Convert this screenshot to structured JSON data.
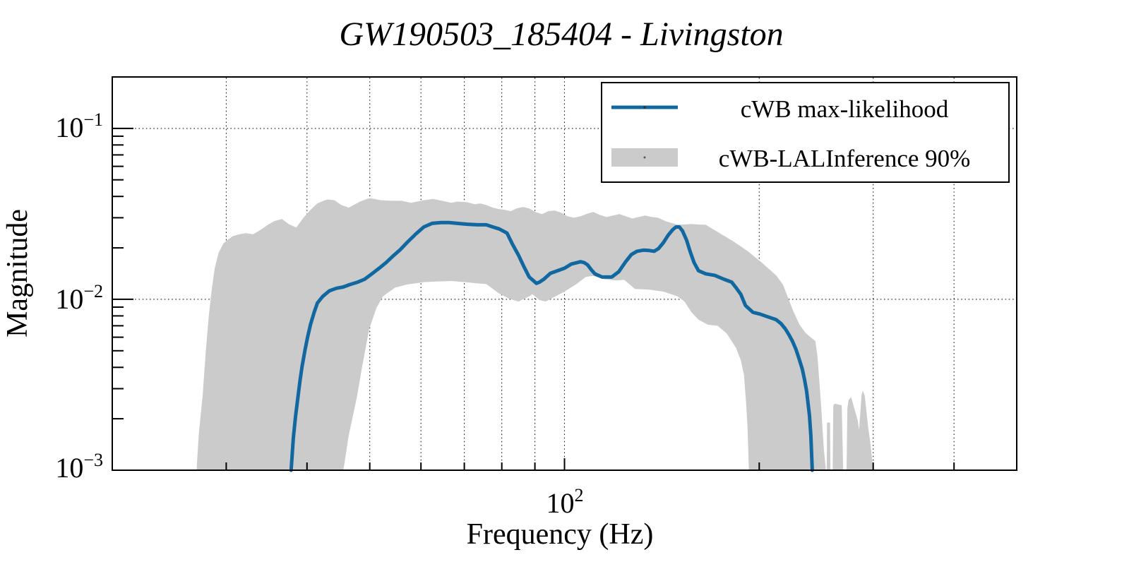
{
  "figure": {
    "background": "#ffffff"
  },
  "chart_data": {
    "type": "line",
    "title": "GW190503_185404 - Livingston",
    "xlabel": "Frequency (Hz)",
    "ylabel": "Magnitude",
    "x_scale": "log",
    "y_scale": "log",
    "xlim": [
      20,
      500
    ],
    "ylim": [
      0.001,
      0.2
    ],
    "grid": "dotted",
    "x_gridlines": [
      30,
      40,
      50,
      60,
      70,
      80,
      90,
      100,
      200,
      300,
      400
    ],
    "y_gridlines": [
      0.1,
      0.01
    ],
    "x_ticks_minor": [
      30,
      40,
      50,
      60,
      70,
      80,
      90,
      200,
      300,
      400
    ],
    "x_ticks_major": [
      100
    ],
    "y_ticks_major": [
      0.1,
      0.01
    ],
    "y_ticks_minor": [
      0.09,
      0.08,
      0.07,
      0.06,
      0.05,
      0.04,
      0.03,
      0.02,
      0.009,
      0.008,
      0.007,
      0.006,
      0.005,
      0.004,
      0.003,
      0.002
    ],
    "x_tick_labels": [
      {
        "value": 100,
        "base": "10",
        "exp": "2"
      }
    ],
    "y_tick_labels": [
      {
        "value": 0.1,
        "base": "10",
        "exp": "−1"
      },
      {
        "value": 0.01,
        "base": "10",
        "exp": "−2"
      },
      {
        "value": 0.001,
        "base": "10",
        "exp": "−3"
      }
    ],
    "legend": {
      "position": "upper right",
      "entries": [
        {
          "label": "cWB max-likelihood",
          "type": "line",
          "color": "#1168a0"
        },
        {
          "label": "cWB-LALInference 90%",
          "type": "band",
          "color": "#cbcbcb"
        }
      ]
    },
    "series": [
      {
        "name": "cWB max-likelihood",
        "color": "#1168a0",
        "points": [
          [
            37.8,
            0.001
          ],
          [
            38.1,
            0.00155
          ],
          [
            38.4,
            0.00207
          ],
          [
            38.7,
            0.00262
          ],
          [
            39.0,
            0.00332
          ],
          [
            39.3,
            0.00404
          ],
          [
            39.7,
            0.00503
          ],
          [
            40.1,
            0.00605
          ],
          [
            40.5,
            0.00713
          ],
          [
            41.0,
            0.00833
          ],
          [
            41.5,
            0.00951
          ],
          [
            42.3,
            0.0104
          ],
          [
            43.3,
            0.0112
          ],
          [
            44.4,
            0.0116
          ],
          [
            45.5,
            0.0118
          ],
          [
            46.6,
            0.0122
          ],
          [
            47.9,
            0.0126
          ],
          [
            49.1,
            0.0131
          ],
          [
            50.4,
            0.0141
          ],
          [
            51.7,
            0.0152
          ],
          [
            53.0,
            0.0164
          ],
          [
            54.4,
            0.018
          ],
          [
            55.8,
            0.0196
          ],
          [
            57.1,
            0.0215
          ],
          [
            58.9,
            0.0241
          ],
          [
            60.6,
            0.0265
          ],
          [
            62.4,
            0.0278
          ],
          [
            64.4,
            0.0281
          ],
          [
            66.3,
            0.0281
          ],
          [
            68.3,
            0.0278
          ],
          [
            70.8,
            0.0275
          ],
          [
            73.4,
            0.0273
          ],
          [
            75.7,
            0.0273
          ],
          [
            77.5,
            0.0265
          ],
          [
            79.3,
            0.0258
          ],
          [
            81.5,
            0.0244
          ],
          [
            83.0,
            0.0212
          ],
          [
            84.9,
            0.0181
          ],
          [
            86.5,
            0.0156
          ],
          [
            88.2,
            0.0135
          ],
          [
            90.5,
            0.0124
          ],
          [
            91.5,
            0.0126
          ],
          [
            92.9,
            0.0131
          ],
          [
            95.1,
            0.0142
          ],
          [
            100.0,
            0.0152
          ],
          [
            102.5,
            0.0161
          ],
          [
            104.6,
            0.0164
          ],
          [
            105.9,
            0.0166
          ],
          [
            107.2,
            0.0164
          ],
          [
            108.6,
            0.0159
          ],
          [
            110.0,
            0.0149
          ],
          [
            111.4,
            0.0141
          ],
          [
            114.3,
            0.0135
          ],
          [
            118.3,
            0.0135
          ],
          [
            121.3,
            0.0145
          ],
          [
            124.3,
            0.0166
          ],
          [
            126.9,
            0.0183
          ],
          [
            129.4,
            0.0191
          ],
          [
            132.4,
            0.0194
          ],
          [
            135.2,
            0.0193
          ],
          [
            137.6,
            0.0191
          ],
          [
            139.7,
            0.0198
          ],
          [
            142.1,
            0.0214
          ],
          [
            144.6,
            0.0237
          ],
          [
            146.9,
            0.0255
          ],
          [
            148.7,
            0.0265
          ],
          [
            150.5,
            0.0265
          ],
          [
            152.2,
            0.0251
          ],
          [
            154.4,
            0.0222
          ],
          [
            156.5,
            0.0189
          ],
          [
            158.6,
            0.0164
          ],
          [
            161.1,
            0.0147
          ],
          [
            165.3,
            0.0141
          ],
          [
            170.8,
            0.0138
          ],
          [
            176.4,
            0.0131
          ],
          [
            181.3,
            0.0126
          ],
          [
            184.1,
            0.0117
          ],
          [
            187.3,
            0.0107
          ],
          [
            190.4,
            0.0092
          ],
          [
            195.5,
            0.0084
          ],
          [
            200.5,
            0.0082
          ],
          [
            206.1,
            0.0079
          ],
          [
            212.4,
            0.0076
          ],
          [
            216.2,
            0.0072
          ],
          [
            219.5,
            0.0067
          ],
          [
            222.3,
            0.0062
          ],
          [
            225.0,
            0.0057
          ],
          [
            227.9,
            0.0051
          ],
          [
            230.8,
            0.0044
          ],
          [
            233.1,
            0.0039
          ],
          [
            234.9,
            0.0034
          ],
          [
            236.7,
            0.0029
          ],
          [
            239.1,
            0.0021
          ],
          [
            240.3,
            0.0016
          ],
          [
            241.5,
            0.001
          ]
        ]
      }
    ],
    "band": {
      "name": "cWB-LALInference 90%",
      "color": "#cbcbcb",
      "upper": [
        [
          27.0,
          0.001
        ],
        [
          27.2,
          0.0016
        ],
        [
          27.6,
          0.0028
        ],
        [
          27.9,
          0.005
        ],
        [
          28.2,
          0.008
        ],
        [
          28.5,
          0.0114
        ],
        [
          28.8,
          0.0152
        ],
        [
          29.2,
          0.0187
        ],
        [
          29.7,
          0.0212
        ],
        [
          30.1,
          0.0222
        ],
        [
          30.7,
          0.0234
        ],
        [
          31.4,
          0.024
        ],
        [
          32.2,
          0.0244
        ],
        [
          33.0,
          0.024
        ],
        [
          33.8,
          0.0253
        ],
        [
          34.8,
          0.0273
        ],
        [
          35.6,
          0.0287
        ],
        [
          36.6,
          0.0295
        ],
        [
          37.5,
          0.0275
        ],
        [
          38.5,
          0.0263
        ],
        [
          39.5,
          0.03
        ],
        [
          40.5,
          0.0334
        ],
        [
          41.5,
          0.0364
        ],
        [
          42.6,
          0.038
        ],
        [
          43.1,
          0.0384
        ],
        [
          44.1,
          0.038
        ],
        [
          45.2,
          0.0356
        ],
        [
          46.4,
          0.0344
        ],
        [
          48.3,
          0.0373
        ],
        [
          49.5,
          0.0387
        ],
        [
          50.1,
          0.0391
        ],
        [
          52.0,
          0.038
        ],
        [
          54.0,
          0.0377
        ],
        [
          56.0,
          0.0377
        ],
        [
          57.9,
          0.0367
        ],
        [
          60.6,
          0.038
        ],
        [
          62.6,
          0.0387
        ],
        [
          64.7,
          0.0377
        ],
        [
          66.8,
          0.0367
        ],
        [
          68.3,
          0.0373
        ],
        [
          70.6,
          0.037
        ],
        [
          72.7,
          0.036
        ],
        [
          74.1,
          0.0364
        ],
        [
          75.7,
          0.0356
        ],
        [
          77.5,
          0.0344
        ],
        [
          79.3,
          0.0337
        ],
        [
          80.9,
          0.0334
        ],
        [
          82.6,
          0.0328
        ],
        [
          84.3,
          0.034
        ],
        [
          86.3,
          0.0347
        ],
        [
          88.2,
          0.034
        ],
        [
          90.2,
          0.0324
        ],
        [
          92.3,
          0.0315
        ],
        [
          94.4,
          0.0328
        ],
        [
          96.6,
          0.0331
        ],
        [
          98.8,
          0.0321
        ],
        [
          101.1,
          0.0306
        ],
        [
          103.4,
          0.03
        ],
        [
          105.8,
          0.0306
        ],
        [
          108.2,
          0.0316
        ],
        [
          110.8,
          0.0324
        ],
        [
          113.3,
          0.0312
        ],
        [
          116.1,
          0.0303
        ],
        [
          118.8,
          0.0309
        ],
        [
          121.6,
          0.0315
        ],
        [
          124.4,
          0.0306
        ],
        [
          127.3,
          0.0297
        ],
        [
          130.2,
          0.0303
        ],
        [
          133.2,
          0.0309
        ],
        [
          136.4,
          0.0303
        ],
        [
          139.5,
          0.03
        ],
        [
          143.7,
          0.0285
        ],
        [
          149.3,
          0.0274
        ],
        [
          153.0,
          0.0274
        ],
        [
          157.0,
          0.0276
        ],
        [
          161.0,
          0.0274
        ],
        [
          165.3,
          0.0273
        ],
        [
          173.7,
          0.0244
        ],
        [
          182.5,
          0.0218
        ],
        [
          191.7,
          0.0192
        ],
        [
          201.8,
          0.0164
        ],
        [
          212.4,
          0.0138
        ],
        [
          217.6,
          0.0122
        ],
        [
          221.2,
          0.0104
        ],
        [
          225.5,
          0.0086
        ],
        [
          230.8,
          0.0071
        ],
        [
          235.5,
          0.0064
        ],
        [
          240.0,
          0.006
        ],
        [
          244.2,
          0.0057
        ],
        [
          245.9,
          0.0047
        ],
        [
          247.7,
          0.0033
        ],
        [
          249.4,
          0.0023
        ],
        [
          250.6,
          0.0017
        ],
        [
          251.8,
          0.0013
        ],
        [
          253.6,
          0.001
        ]
      ],
      "lower": [
        [
          27.0,
          0.001
        ],
        [
          45.5,
          0.001
        ],
        [
          45.7,
          0.0011
        ],
        [
          46.4,
          0.0016
        ],
        [
          47.7,
          0.0026
        ],
        [
          48.7,
          0.0041
        ],
        [
          49.9,
          0.0067
        ],
        [
          51.2,
          0.0089
        ],
        [
          52.4,
          0.0104
        ],
        [
          54.7,
          0.0117
        ],
        [
          57.1,
          0.0122
        ],
        [
          60.6,
          0.0126
        ],
        [
          63.6,
          0.0127
        ],
        [
          66.8,
          0.0128
        ],
        [
          70.3,
          0.0126
        ],
        [
          73.1,
          0.0124
        ],
        [
          75.7,
          0.0123
        ],
        [
          79.0,
          0.0109
        ],
        [
          82.0,
          0.0101
        ],
        [
          84.9,
          0.0097
        ],
        [
          88.2,
          0.0104
        ],
        [
          89.2,
          0.0107
        ],
        [
          91.5,
          0.0099
        ],
        [
          93.5,
          0.0097
        ],
        [
          100.0,
          0.0111
        ],
        [
          104.4,
          0.0123
        ],
        [
          107.8,
          0.0135
        ],
        [
          110.6,
          0.0137
        ],
        [
          115.4,
          0.0131
        ],
        [
          119.9,
          0.0129
        ],
        [
          123.7,
          0.013
        ],
        [
          128.5,
          0.0115
        ],
        [
          135.2,
          0.0114
        ],
        [
          142.1,
          0.0111
        ],
        [
          149.5,
          0.0104
        ],
        [
          153.3,
          0.0097
        ],
        [
          157.1,
          0.0084
        ],
        [
          161.1,
          0.0076
        ],
        [
          166.5,
          0.0071
        ],
        [
          172.4,
          0.007
        ],
        [
          178.2,
          0.0063
        ],
        [
          184.1,
          0.0052
        ],
        [
          187.3,
          0.0044
        ],
        [
          189.4,
          0.0036
        ],
        [
          190.8,
          0.0025
        ],
        [
          191.8,
          0.0018
        ],
        [
          192.7,
          0.001
        ],
        [
          253.6,
          0.001
        ]
      ],
      "islands": [
        [
          [
            254.3,
            0.001
          ],
          [
            254.5,
            0.0019
          ],
          [
            257.3,
            0.0019
          ],
          [
            257.6,
            0.001
          ]
        ],
        [
          [
            259.7,
            0.001
          ],
          [
            260.3,
            0.0024
          ],
          [
            261.7,
            0.00245
          ],
          [
            268.2,
            0.0024
          ],
          [
            269.6,
            0.001
          ]
        ],
        [
          [
            272.9,
            0.001
          ],
          [
            273.6,
            0.00229
          ],
          [
            274.9,
            0.00258
          ],
          [
            277.4,
            0.00268
          ],
          [
            280.0,
            0.00235
          ],
          [
            283.9,
            0.00196
          ],
          [
            285.2,
            0.00172
          ],
          [
            286.5,
            0.00214
          ],
          [
            287.8,
            0.00276
          ],
          [
            289.1,
            0.00292
          ],
          [
            291.1,
            0.00273
          ],
          [
            292.4,
            0.00235
          ],
          [
            294.4,
            0.00184
          ],
          [
            297.1,
            0.00143
          ],
          [
            299.1,
            0.00113
          ],
          [
            300.5,
            0.001
          ]
        ]
      ]
    }
  }
}
